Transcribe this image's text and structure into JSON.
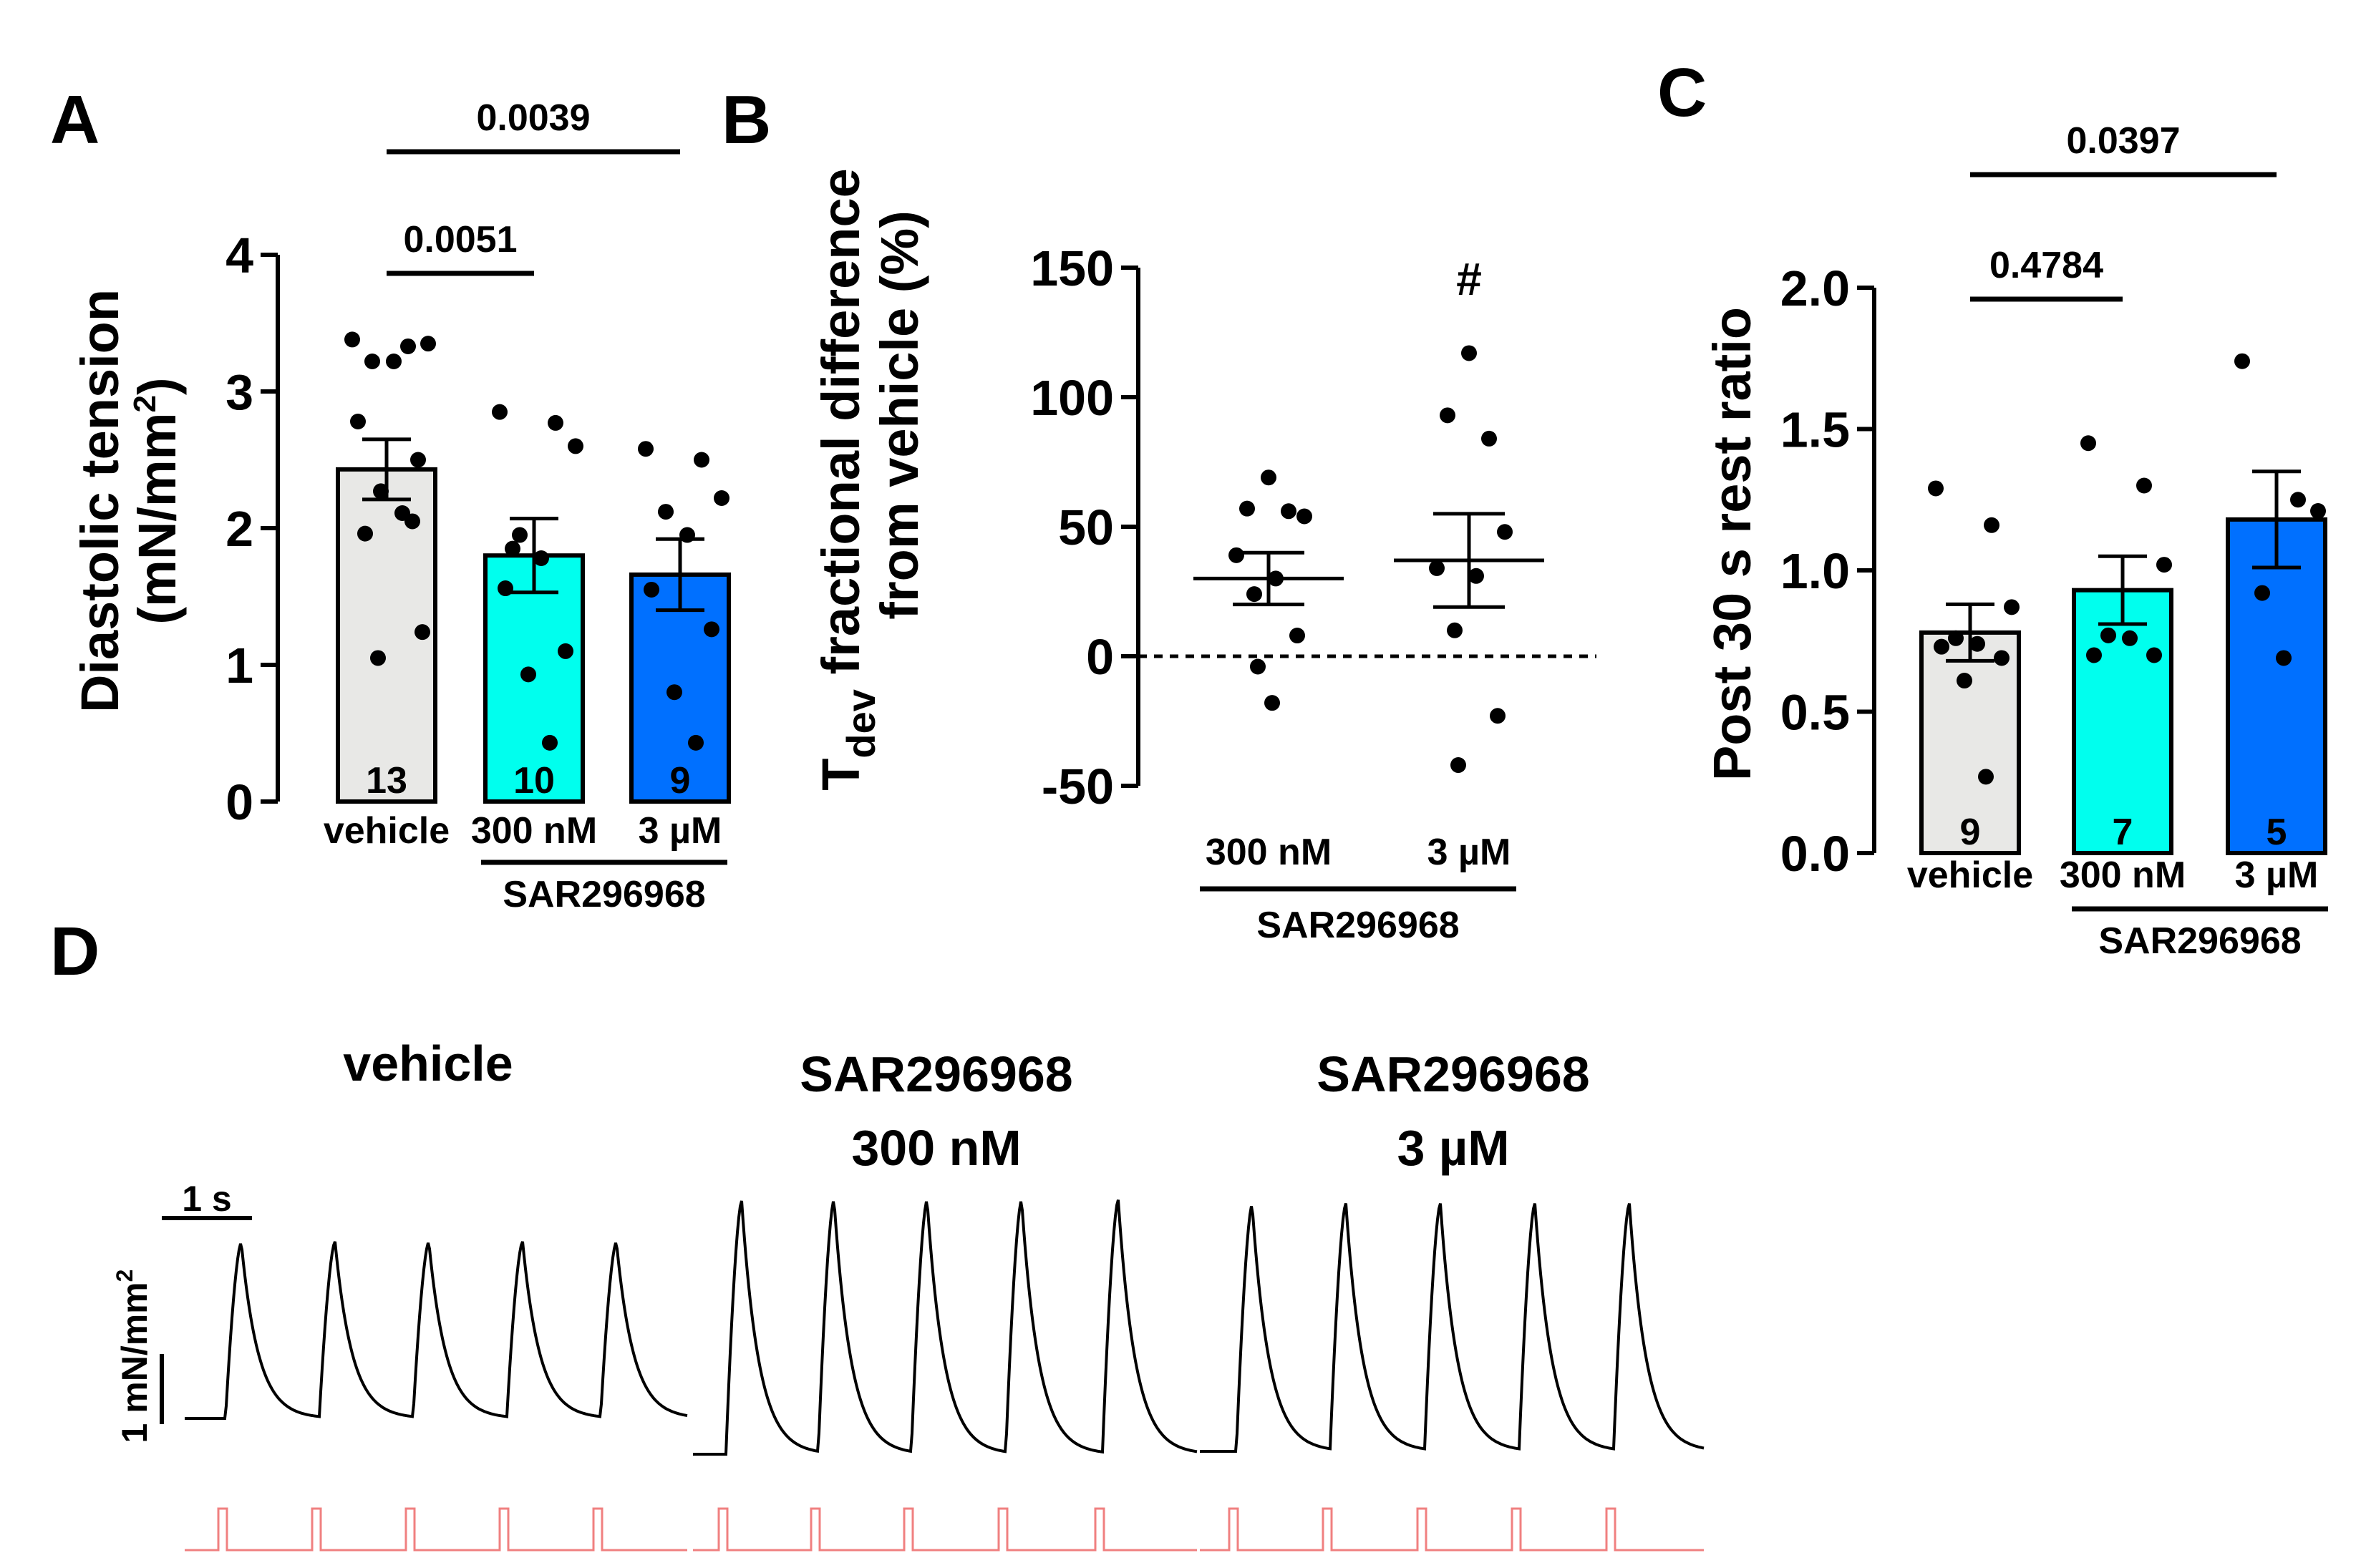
{
  "colors": {
    "vehicle": "#e8e8e6",
    "sar_300nM": "#00ffee",
    "sar_3uM": "#0070ff",
    "trace": "#000000",
    "stimulus": "#f08080"
  },
  "chart_data": [
    {
      "panel": "A",
      "type": "bar",
      "ylabel_line1": "Diastolic tension",
      "ylabel_line2": "(mN/mm",
      "ylabel_sup": "2",
      "ylabel_close": ")",
      "ylim": [
        0,
        4
      ],
      "yticks": [
        "0",
        "1",
        "2",
        "3",
        "4"
      ],
      "categories": [
        "vehicle",
        "300 nM",
        "3 µM"
      ],
      "group_label": "SAR296968",
      "means": [
        2.43,
        1.8,
        1.66
      ],
      "sem": [
        0.22,
        0.27,
        0.26
      ],
      "n": [
        "13",
        "10",
        "9"
      ],
      "points": [
        [
          3.38,
          3.33,
          3.35,
          3.22,
          3.22,
          2.78,
          2.5,
          2.27,
          2.11,
          1.96,
          1.24,
          1.05,
          2.05
        ],
        [
          2.85,
          2.77,
          2.6,
          1.95,
          1.78,
          1.56,
          1.1,
          0.93,
          0.43,
          1.85
        ],
        [
          2.58,
          2.5,
          2.22,
          2.12,
          1.95,
          1.55,
          1.26,
          0.8,
          0.43
        ]
      ],
      "comparisons": [
        {
          "from": 0,
          "to": 1,
          "p": "0.0051"
        },
        {
          "from": 0,
          "to": 2,
          "p": "0.0039"
        }
      ]
    },
    {
      "panel": "B",
      "type": "scatter",
      "ylabel_line1_main": "T",
      "ylabel_line1_sub": "dev",
      "ylabel_line1_rest": " fractional difference",
      "ylabel_line2": "from vehicle (%)",
      "ylim": [
        -50,
        150
      ],
      "yticks": [
        "-50",
        "0",
        "50",
        "100",
        "150"
      ],
      "categories": [
        "300 nM",
        "3 µM"
      ],
      "group_label": "SAR296968",
      "means": [
        30,
        37
      ],
      "sem": [
        10,
        18
      ],
      "points": [
        [
          69,
          57,
          56,
          54,
          39,
          30,
          24,
          8,
          -4,
          -18
        ],
        [
          117,
          93,
          84,
          48,
          34,
          31,
          10,
          -23,
          -42
        ]
      ],
      "annotation": "#",
      "annotation_index": 1
    },
    {
      "panel": "C",
      "type": "bar",
      "ylabel": "Post 30 s rest ratio",
      "ylim": [
        0,
        2
      ],
      "yticks": [
        "0.0",
        "0.5",
        "1.0",
        "1.5",
        "2.0"
      ],
      "categories": [
        "vehicle",
        "300 nM",
        "3 µM"
      ],
      "group_label": "SAR296968",
      "means": [
        0.78,
        0.93,
        1.18
      ],
      "sem": [
        0.1,
        0.12,
        0.17
      ],
      "n": [
        "9",
        "7",
        "5"
      ],
      "points": [
        [
          1.29,
          1.16,
          0.87,
          0.76,
          0.74,
          0.73,
          0.69,
          0.61,
          0.27
        ],
        [
          1.45,
          1.3,
          1.02,
          0.77,
          0.76,
          0.7,
          0.7
        ],
        [
          1.74,
          1.25,
          1.21,
          0.92,
          0.69
        ]
      ],
      "comparisons": [
        {
          "from": 0,
          "to": 1,
          "p": "0.4784"
        },
        {
          "from": 0,
          "to": 2,
          "p": "0.0397"
        }
      ]
    }
  ],
  "panel_d": {
    "panel": "D",
    "traces": [
      {
        "title_line1": "vehicle",
        "title_line2": ""
      },
      {
        "title_line1": "SAR296968",
        "title_line2": "300 nM"
      },
      {
        "title_line1": "SAR296968",
        "title_line2": "3 µM"
      }
    ],
    "time_scale": "1 s",
    "force_scale": "1 mN/mm",
    "force_scale_sup": "2"
  }
}
